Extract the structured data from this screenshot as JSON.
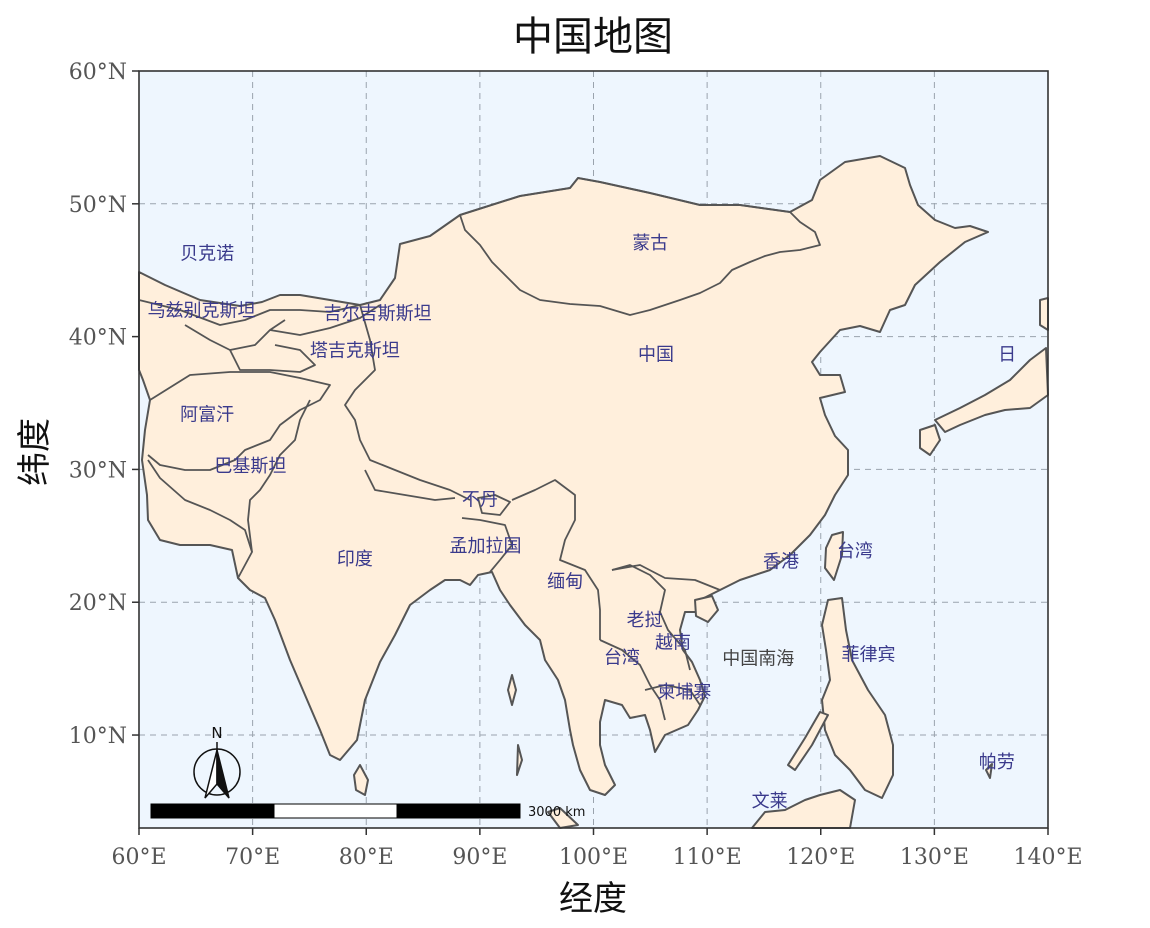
{
  "title": "中国地图",
  "xlabel": "经度",
  "ylabel": "纬度",
  "extent": {
    "lon": [
      60,
      140
    ],
    "lat": [
      3,
      60
    ]
  },
  "xticks": [
    {
      "value": 60,
      "label": "60°E"
    },
    {
      "value": 70,
      "label": "70°E"
    },
    {
      "value": 80,
      "label": "80°E"
    },
    {
      "value": 90,
      "label": "90°E"
    },
    {
      "value": 100,
      "label": "100°E"
    },
    {
      "value": 110,
      "label": "110°E"
    },
    {
      "value": 120,
      "label": "120°E"
    },
    {
      "value": 130,
      "label": "130°E"
    },
    {
      "value": 140,
      "label": "140°E"
    }
  ],
  "yticks": [
    {
      "value": 10,
      "label": "10°N"
    },
    {
      "value": 20,
      "label": "20°N"
    },
    {
      "value": 30,
      "label": "30°N"
    },
    {
      "value": 40,
      "label": "40°N"
    },
    {
      "value": 50,
      "label": "50°N"
    },
    {
      "value": 60,
      "label": "60°N"
    }
  ],
  "colors": {
    "ocean": "#eef6fe",
    "land": "#ffefdc",
    "border": "#555555",
    "label": "#3a3a8c",
    "sea_label": "#444444"
  },
  "places": [
    {
      "name": "蒙古",
      "lon": 105,
      "lat": 46.6
    },
    {
      "name": "中国",
      "lon": 105.5,
      "lat": 38.2
    },
    {
      "name": "贝克诺",
      "lon": 66,
      "lat": 45.8
    },
    {
      "name": "乌兹别克斯坦",
      "lon": 65.5,
      "lat": 41.5
    },
    {
      "name": "吉尔吉斯斯坦",
      "lon": 81,
      "lat": 41.3
    },
    {
      "name": "塔吉克斯坦",
      "lon": 79,
      "lat": 38.5
    },
    {
      "name": "阿富汗",
      "lon": 66,
      "lat": 33.7
    },
    {
      "name": "巴基斯坦",
      "lon": 69.8,
      "lat": 29.8
    },
    {
      "name": "印度",
      "lon": 79,
      "lat": 22.8
    },
    {
      "name": "不丹",
      "lon": 90,
      "lat": 27.3
    },
    {
      "name": "孟加拉国",
      "lon": 90.5,
      "lat": 23.8
    },
    {
      "name": "缅甸",
      "lon": 97.5,
      "lat": 21.1
    },
    {
      "name": "老挝",
      "lon": 104.5,
      "lat": 18.2
    },
    {
      "name": "越南",
      "lon": 107,
      "lat": 16.5
    },
    {
      "name": "台湾",
      "lon": 102.5,
      "lat": 15.4
    },
    {
      "name": "柬埔寨",
      "lon": 108,
      "lat": 12.8
    },
    {
      "name": "香港",
      "lon": 116.5,
      "lat": 22.6
    },
    {
      "name": "台湾",
      "lon": 123,
      "lat": 23.4
    },
    {
      "name": "菲律宾",
      "lon": 124.2,
      "lat": 15.6
    },
    {
      "name": "日",
      "lon": 136.4,
      "lat": 38.2
    },
    {
      "name": "帕劳",
      "lon": 135.5,
      "lat": 7.5
    },
    {
      "name": "文莱",
      "lon": 115.5,
      "lat": 4.6
    }
  ],
  "sea_label": {
    "name": "中国南海",
    "lon": 114.5,
    "lat": 15.3
  },
  "north_arrow": {
    "label": "N"
  },
  "scale_bar": {
    "label": "3000 km"
  }
}
